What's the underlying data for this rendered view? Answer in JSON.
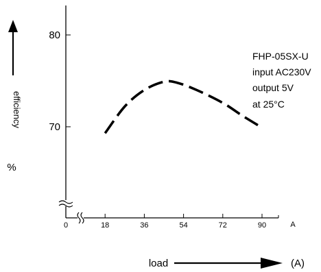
{
  "chart_data": {
    "type": "line",
    "title": "",
    "xlabel": "load",
    "xunit": "(A)",
    "xunit_short": "A",
    "ylabel": "efficiency",
    "yunit": "%",
    "x_ticks": [
      {
        "value": 0,
        "label": "0"
      },
      {
        "value": 18,
        "label": "18"
      },
      {
        "value": 36,
        "label": "36"
      },
      {
        "value": 54,
        "label": "54"
      },
      {
        "value": 72,
        "label": "72"
      },
      {
        "value": 90,
        "label": "90"
      }
    ],
    "y_ticks": [
      {
        "value": 70,
        "label": "70"
      },
      {
        "value": 80,
        "label": "80"
      }
    ],
    "xlim": [
      0,
      100
    ],
    "ylim": [
      61,
      84
    ],
    "axis_breaks": true,
    "grid": false,
    "line_style": "dashed",
    "annotation": [
      "FHP-05SX-U",
      "input AC230V",
      "output 5V",
      "at 25°C"
    ],
    "series": [
      {
        "x": [
          18,
          27,
          36,
          45,
          51,
          60,
          72,
          81,
          90
        ],
        "y": [
          69.3,
          72.2,
          74.0,
          74.9,
          74.8,
          74.0,
          72.6,
          71.2,
          69.9
        ]
      }
    ]
  }
}
